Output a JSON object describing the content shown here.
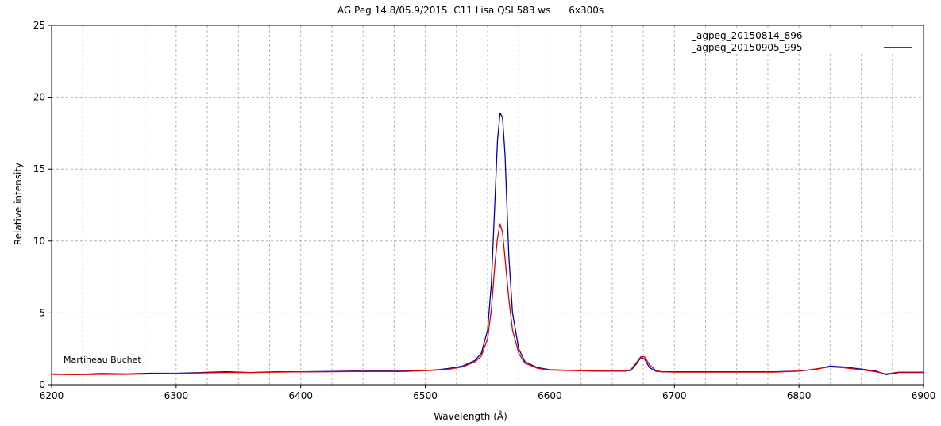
{
  "chart_data": {
    "type": "line",
    "title": "AG Peg 14.8/05.9/2015  C11 Lisa QSI 583 ws      6x300s",
    "xlabel": "Wavelength (Å)",
    "ylabel": "Relative intensity",
    "xlim": [
      6200,
      6900
    ],
    "ylim": [
      0,
      25
    ],
    "xticks": [
      "6200",
      "6300",
      "6400",
      "6500",
      "6600",
      "6700",
      "6800",
      "6900"
    ],
    "yticks": [
      "0",
      "5",
      "10",
      "15",
      "20",
      "25"
    ],
    "grid": true,
    "legend_position": "top-right",
    "annotation": "Martineau Buchet",
    "series": [
      {
        "name": "_agpeg_20150814_896",
        "color": "#0000b0",
        "x": [
          6200,
          6220,
          6240,
          6260,
          6280,
          6300,
          6320,
          6340,
          6360,
          6380,
          6400,
          6420,
          6440,
          6460,
          6480,
          6500,
          6510,
          6520,
          6530,
          6540,
          6545,
          6550,
          6553,
          6556,
          6558,
          6560,
          6562,
          6564,
          6567,
          6570,
          6575,
          6580,
          6590,
          6600,
          6620,
          6640,
          6660,
          6665,
          6670,
          6673,
          6676,
          6680,
          6685,
          6690,
          6700,
          6720,
          6740,
          6760,
          6780,
          6800,
          6815,
          6825,
          6835,
          6850,
          6862,
          6870,
          6880,
          6900
        ],
        "y": [
          0.75,
          0.72,
          0.78,
          0.75,
          0.8,
          0.8,
          0.85,
          0.9,
          0.85,
          0.9,
          0.9,
          0.92,
          0.95,
          0.95,
          0.95,
          1.0,
          1.05,
          1.15,
          1.3,
          1.7,
          2.2,
          3.8,
          7.0,
          13.0,
          17.0,
          18.9,
          18.6,
          16.0,
          9.0,
          5.0,
          2.5,
          1.6,
          1.2,
          1.05,
          1.0,
          0.95,
          0.95,
          1.0,
          1.5,
          1.9,
          1.8,
          1.2,
          0.95,
          0.9,
          0.9,
          0.9,
          0.9,
          0.9,
          0.9,
          0.95,
          1.1,
          1.3,
          1.25,
          1.1,
          0.95,
          0.7,
          0.85,
          0.85
        ]
      },
      {
        "name": "_agpeg_20150905_995",
        "color": "#e00000",
        "x": [
          6200,
          6220,
          6240,
          6260,
          6280,
          6300,
          6320,
          6340,
          6360,
          6380,
          6400,
          6420,
          6440,
          6460,
          6480,
          6500,
          6510,
          6520,
          6530,
          6540,
          6545,
          6550,
          6553,
          6556,
          6558,
          6560,
          6562,
          6564,
          6567,
          6570,
          6575,
          6580,
          6590,
          6600,
          6620,
          6640,
          6660,
          6665,
          6670,
          6673,
          6676,
          6680,
          6685,
          6690,
          6700,
          6720,
          6740,
          6760,
          6780,
          6800,
          6815,
          6825,
          6835,
          6850,
          6862,
          6870,
          6880,
          6900
        ],
        "y": [
          0.72,
          0.7,
          0.72,
          0.72,
          0.75,
          0.78,
          0.82,
          0.85,
          0.85,
          0.88,
          0.9,
          0.9,
          0.92,
          0.92,
          0.92,
          0.98,
          1.02,
          1.1,
          1.25,
          1.6,
          2.0,
          3.2,
          5.2,
          8.5,
          10.2,
          11.2,
          10.6,
          8.8,
          6.0,
          3.8,
          2.2,
          1.5,
          1.15,
          1.02,
          0.98,
          0.95,
          0.95,
          1.05,
          1.6,
          1.95,
          1.95,
          1.4,
          1.0,
          0.9,
          0.88,
          0.88,
          0.88,
          0.88,
          0.88,
          0.95,
          1.12,
          1.25,
          1.2,
          1.05,
          0.9,
          0.75,
          0.88,
          0.88
        ]
      }
    ]
  }
}
